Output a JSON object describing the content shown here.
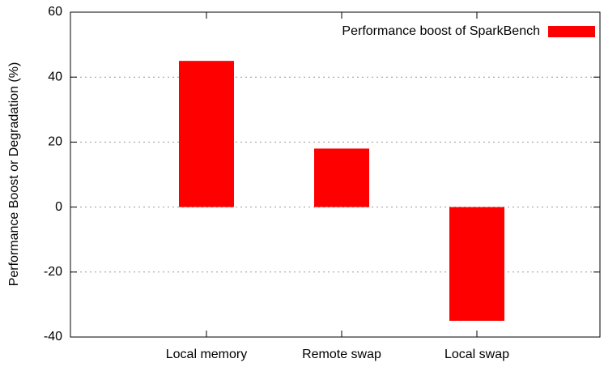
{
  "chart_data": {
    "type": "bar",
    "y_label": "Performance Boost or Degradation (%)",
    "categories": [
      "Local memory",
      "Remote swap",
      "Local swap"
    ],
    "series": [
      {
        "name": "Performance boost of SparkBench",
        "color": "#ff0000",
        "values": [
          45,
          18,
          -35
        ]
      }
    ],
    "ylim": [
      -40,
      60
    ],
    "yticks": [
      -40,
      -20,
      0,
      20,
      40,
      60
    ],
    "grid": true,
    "legend": "top-right"
  }
}
